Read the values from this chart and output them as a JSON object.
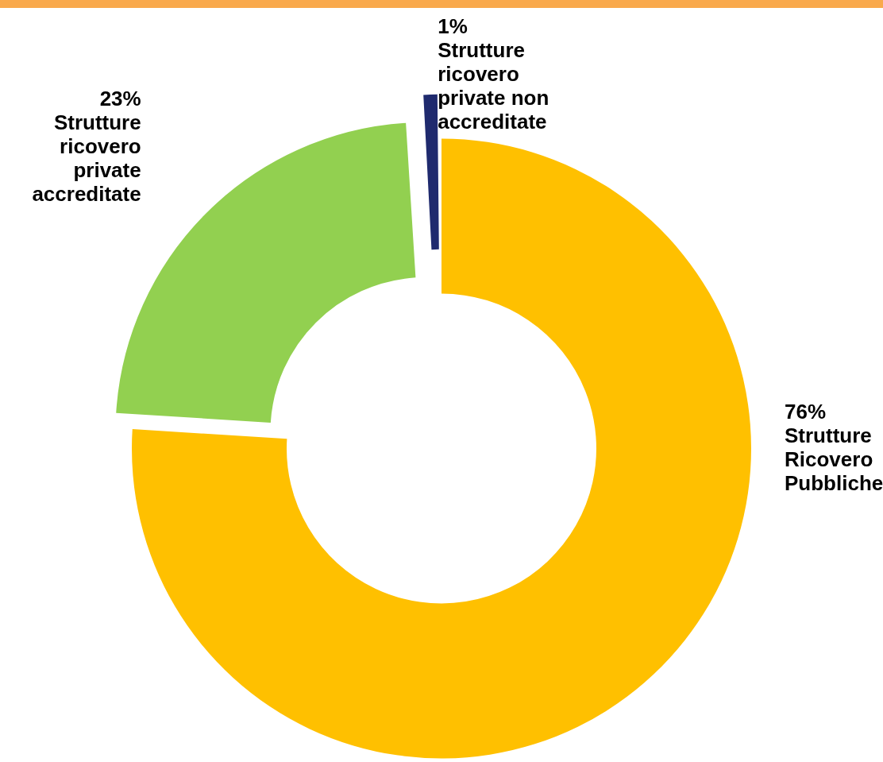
{
  "chart_data": {
    "type": "donut",
    "categories": [
      "Strutture Ricovero Pubbliche",
      "Strutture ricovero private accreditate",
      "Strutture ricovero private non accreditate"
    ],
    "values": [
      76,
      23,
      1
    ],
    "colors": [
      "#ffc000",
      "#92d050",
      "#1f2a6e"
    ],
    "value_labels": [
      "76%",
      "23%",
      "1%"
    ],
    "legend": false
  }
}
